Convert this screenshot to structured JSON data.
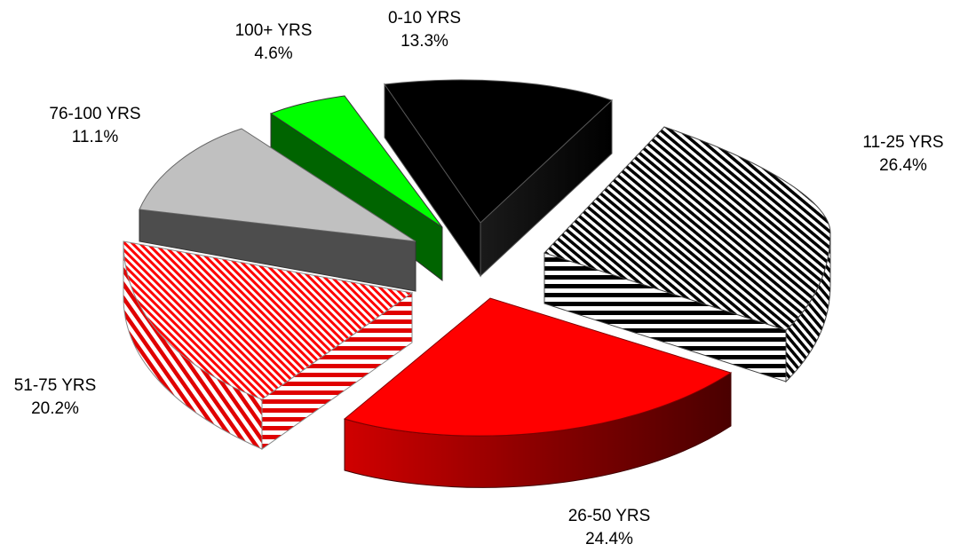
{
  "chart_data": {
    "type": "pie",
    "title": "",
    "style": "3d-exploded",
    "categories": [
      "0-10 YRS",
      "11-25 YRS",
      "26-50 YRS",
      "51-75 YRS",
      "76-100 YRS",
      "100+ YRS"
    ],
    "values": [
      13.3,
      26.4,
      24.4,
      20.2,
      11.1,
      4.6
    ],
    "value_labels": [
      "13.3%",
      "26.4%",
      "24.4%",
      "20.2%",
      "11.1%",
      "4.6%"
    ],
    "slices": [
      {
        "label": "0-10 YRS",
        "value": 13.3,
        "value_label": "13.3%",
        "color": "#000000",
        "pattern": "solid"
      },
      {
        "label": "11-25 YRS",
        "value": 26.4,
        "value_label": "26.4%",
        "color": "#000000",
        "pattern": "diagonal-stripes-black-white"
      },
      {
        "label": "26-50 YRS",
        "value": 24.4,
        "value_label": "24.4%",
        "color": "#ff0000",
        "pattern": "solid"
      },
      {
        "label": "51-75 YRS",
        "value": 20.2,
        "value_label": "20.2%",
        "color": "#ff0000",
        "pattern": "diagonal-stripes-red-white"
      },
      {
        "label": "76-100 YRS",
        "value": 11.1,
        "value_label": "11.1%",
        "color": "#c0c0c0",
        "pattern": "solid"
      },
      {
        "label": "100+ YRS",
        "value": 4.6,
        "value_label": "4.6%",
        "color": "#00ff00",
        "pattern": "solid"
      }
    ],
    "legend": "none",
    "labels_placement": "outside-slices"
  }
}
